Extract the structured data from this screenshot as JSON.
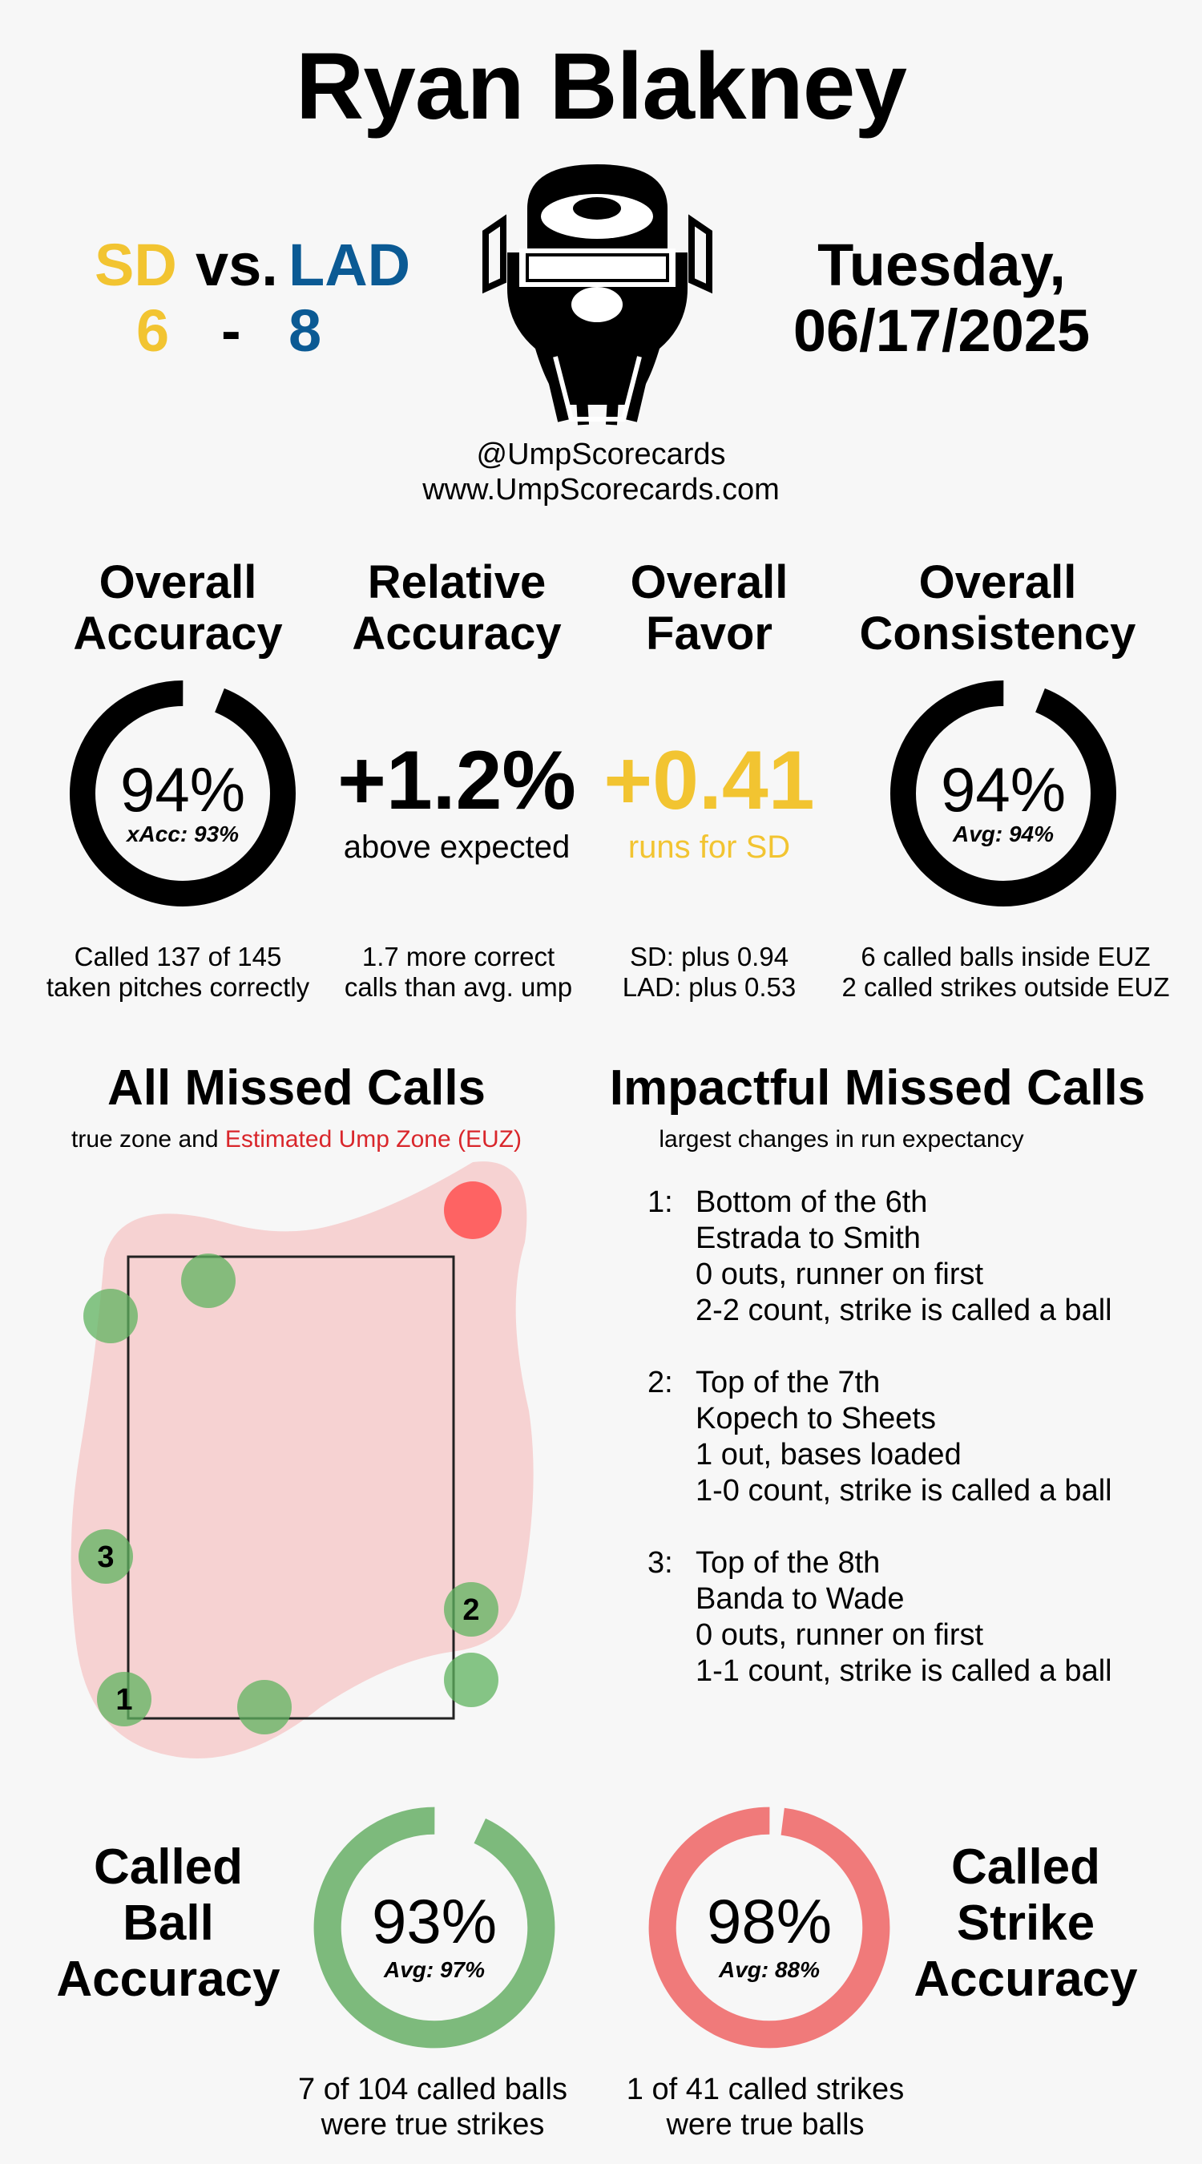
{
  "header": {
    "umpire_name": "Ryan Blakney",
    "away_team": "SD",
    "vs_label": "vs.",
    "home_team": "LAD",
    "away_score": "6",
    "score_separator": "-",
    "home_score": "8",
    "date_line1": "Tuesday,",
    "date_line2": "06/17/2025",
    "handle": "@UmpScorecards",
    "website": "www.UmpScorecards.com",
    "mask_icon": "umpire-mask-icon",
    "colors": {
      "away": "#f2c431",
      "home": "#0b5a94"
    }
  },
  "stats": {
    "overall_accuracy": {
      "title_line1": "Overall",
      "title_line2": "Accuracy",
      "value": "94%",
      "value_fraction": 0.94,
      "sub": "xAcc: 93%",
      "desc_line1": "Called 137 of 145",
      "desc_line2": "taken pitches correctly"
    },
    "relative_accuracy": {
      "title_line1": "Relative",
      "title_line2": "Accuracy",
      "value": "+1.2%",
      "sub": "above expected",
      "desc_line1": "1.7 more correct",
      "desc_line2": "calls than avg. ump"
    },
    "overall_favor": {
      "title_line1": "Overall",
      "title_line2": "Favor",
      "value": "+0.41",
      "sub": "runs for SD",
      "desc_line1": "SD: plus 0.94",
      "desc_line2": "LAD: plus 0.53"
    },
    "overall_consistency": {
      "title_line1": "Overall",
      "title_line2": "Consistency",
      "value": "94%",
      "value_fraction": 0.94,
      "sub": "Avg: 94%",
      "desc_line1": "6 called balls inside EUZ",
      "desc_line2": "2 called strikes outside EUZ"
    }
  },
  "missed_calls": {
    "title": "All Missed Calls",
    "sub_plain": "true zone and",
    "sub_red": "Estimated Ump Zone (EUZ)",
    "labels": [
      "1",
      "2",
      "3"
    ]
  },
  "impactful": {
    "title": "Impactful Missed Calls",
    "sub": "largest changes in run expectancy",
    "items": [
      {
        "num": "1:",
        "lines": [
          "Bottom of the 6th",
          "Estrada to Smith",
          "0 outs, runner on first",
          "2-2 count, strike is called a ball"
        ]
      },
      {
        "num": "2:",
        "lines": [
          "Top of the 7th",
          "Kopech to Sheets",
          "1 out, bases loaded",
          "1-0 count, strike is called a ball"
        ]
      },
      {
        "num": "3:",
        "lines": [
          "Top of the 8th",
          "Banda to Wade",
          "0 outs, runner on first",
          "1-1 count, strike is called a ball"
        ]
      }
    ]
  },
  "bottom": {
    "ball": {
      "title_line1": "Called",
      "title_line2": "Ball",
      "title_line3": "Accuracy",
      "value": "93%",
      "value_fraction": 0.93,
      "sub": "Avg: 97%",
      "desc_line1": "7 of 104 called balls",
      "desc_line2": "were true strikes",
      "color": "#7dba7c"
    },
    "strike": {
      "title_line1": "Called",
      "title_line2": "Strike",
      "title_line3": "Accuracy",
      "value": "98%",
      "value_fraction": 0.98,
      "sub": "Avg: 88%",
      "desc_line1": "1 of 41 called strikes",
      "desc_line2": "were true balls",
      "color": "#f07a7a"
    }
  }
}
